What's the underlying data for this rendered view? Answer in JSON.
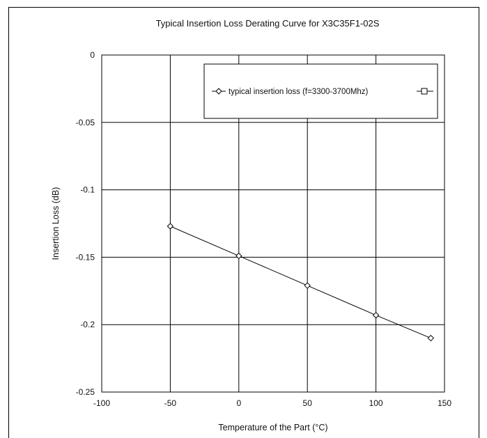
{
  "chart_data": {
    "type": "line",
    "title": "Typical Insertion  Loss Derating Curve for X3C35F1-02S",
    "xlabel": "Temperature of the Part (°C)",
    "ylabel": "Insertion Loss (dB)",
    "xlim": [
      -100,
      150
    ],
    "ylim": [
      -0.25,
      0
    ],
    "xticks": [
      -100,
      -50,
      0,
      50,
      100,
      150
    ],
    "xtick_labels": [
      "-100",
      "-50",
      "0",
      "50",
      "100",
      "150"
    ],
    "yticks": [
      0,
      -0.05,
      -0.1,
      -0.15,
      -0.2,
      -0.25
    ],
    "ytick_labels": [
      "0",
      "-0.05",
      "-0.1",
      "-0.15",
      "-0.2",
      "-0.25"
    ],
    "grid": true,
    "legend_position": "top-right",
    "series": [
      {
        "name": "typical insertion loss (f=3300-3700Mhz)",
        "marker": "diamond",
        "color": "#000000",
        "x": [
          -50,
          0,
          50,
          100,
          140
        ],
        "y": [
          -0.127,
          -0.149,
          -0.171,
          -0.193,
          -0.21
        ]
      },
      {
        "name": "",
        "marker": "square",
        "color": "#000000",
        "x": [],
        "y": []
      }
    ]
  }
}
